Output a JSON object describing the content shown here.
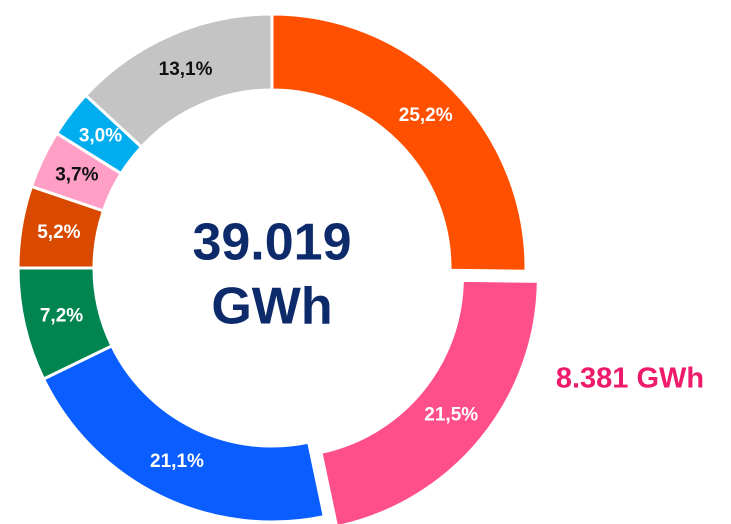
{
  "chart_data": {
    "type": "pie",
    "donut": true,
    "values": [
      25.2,
      21.5,
      21.1,
      7.2,
      5.2,
      3.7,
      3.0,
      13.1
    ],
    "value_labels": [
      "25,2%",
      "21,5%",
      "21,1%",
      "7,2%",
      "5,2%",
      "3,7%",
      "3,0%",
      "13,1%"
    ],
    "colors": [
      "#ff5000",
      "#ff4f8b",
      "#0a5eff",
      "#008450",
      "#d94a00",
      "#ff9fc5",
      "#00aeef",
      "#c4c4c4"
    ],
    "exploded": [
      1
    ],
    "center_text": [
      "39.019",
      "GWh"
    ],
    "annotation": {
      "text": "8.381 GWh",
      "color": "#ee1a6b",
      "slice": 1
    }
  }
}
